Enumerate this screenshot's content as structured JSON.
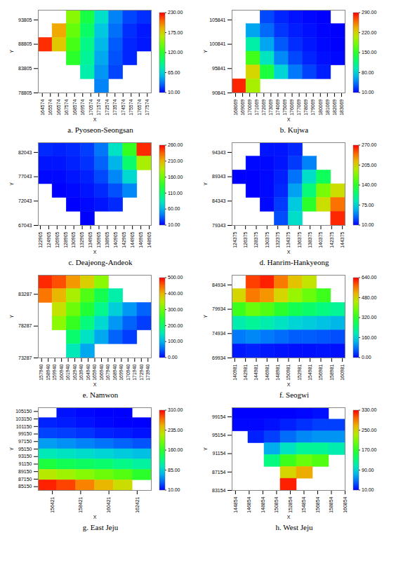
{
  "chart_data": [
    {
      "type": "heatmap",
      "title": "a. Pyoseon-Seongsan",
      "xlabel": "X",
      "ylabel": "Y",
      "xlim": [
        164074,
        178074
      ],
      "xticks": [
        164574,
        165574,
        166574,
        167574,
        168574,
        169574,
        170574,
        171574,
        172574,
        173574,
        174574,
        175574,
        176574,
        177574
      ],
      "ylim": [
        78805,
        95805
      ],
      "yticks": [
        78805,
        83805,
        88805,
        93805
      ],
      "cells": [
        [
          null,
          null,
          150,
          110,
          70,
          40,
          25,
          20
        ],
        [
          null,
          190,
          140,
          100,
          60,
          35,
          20,
          15
        ],
        [
          220,
          180,
          130,
          90,
          55,
          30,
          18,
          15
        ],
        [
          null,
          null,
          120,
          85,
          50,
          28,
          18,
          null
        ],
        [
          null,
          null,
          null,
          80,
          45,
          25,
          null,
          null
        ],
        [
          null,
          null,
          null,
          null,
          40,
          null,
          null,
          null
        ]
      ],
      "colorbar": {
        "range": [
          10,
          230
        ],
        "ticks": [
          {
            "value": 10,
            "label": "10.00"
          },
          {
            "value": 65,
            "label": "65.00"
          },
          {
            "value": 120,
            "label": "120.00"
          },
          {
            "value": 175,
            "label": "175.00"
          },
          {
            "value": 230,
            "label": "230.00"
          }
        ]
      }
    },
    {
      "type": "heatmap",
      "title": "b. Kujwa",
      "xlabel": "X",
      "ylabel": "Y",
      "xlim": [
        167569,
        183569
      ],
      "xticks": [
        168069,
        169069,
        170069,
        171069,
        172069,
        173069,
        174069,
        175069,
        176069,
        177069,
        178069,
        179069,
        180069,
        181069,
        182069,
        183069
      ],
      "ylim": [
        90841,
        107841
      ],
      "yticks": [
        90841,
        95841,
        100841,
        105841
      ],
      "cells": [
        [
          null,
          null,
          30,
          20,
          15,
          12,
          10,
          null
        ],
        [
          null,
          60,
          40,
          25,
          18,
          14,
          11,
          10
        ],
        [
          null,
          100,
          60,
          35,
          22,
          16,
          12,
          10
        ],
        [
          null,
          160,
          90,
          50,
          30,
          20,
          14,
          12
        ],
        [
          null,
          220,
          140,
          80,
          45,
          28,
          18,
          null
        ],
        [
          280,
          200,
          null,
          null,
          null,
          null,
          null,
          null
        ]
      ],
      "colorbar": {
        "range": [
          10,
          290
        ],
        "ticks": [
          {
            "value": 10,
            "label": "10.00"
          },
          {
            "value": 80,
            "label": "80.00"
          },
          {
            "value": 150,
            "label": "150.00"
          },
          {
            "value": 220,
            "label": "220.00"
          },
          {
            "value": 290,
            "label": "290.00"
          }
        ]
      }
    },
    {
      "type": "heatmap",
      "title": "c. Deajeong-Andeok",
      "xlabel": "X",
      "ylabel": "Y",
      "xlim": [
        122405,
        149405
      ],
      "xticks": [
        122905,
        124905,
        126905,
        128905,
        130905,
        132905,
        134905,
        136905,
        138905,
        140905,
        142905,
        144905,
        146905,
        148905
      ],
      "ylim": [
        67043,
        84043
      ],
      "yticks": [
        67043,
        72043,
        77043,
        82043
      ],
      "cells": [
        [
          20,
          18,
          20,
          25,
          40,
          80,
          140,
          250
        ],
        [
          15,
          15,
          18,
          22,
          35,
          60,
          110,
          180
        ],
        [
          12,
          12,
          15,
          18,
          28,
          45,
          75,
          null
        ],
        [
          null,
          10,
          12,
          15,
          20,
          30,
          45,
          null
        ],
        [
          null,
          null,
          10,
          12,
          15,
          20,
          null,
          null
        ],
        [
          null,
          null,
          null,
          10,
          null,
          null,
          null,
          null
        ]
      ],
      "colorbar": {
        "range": [
          10,
          260
        ],
        "ticks": [
          {
            "value": 10,
            "label": "10.00"
          },
          {
            "value": 60,
            "label": "60.00"
          },
          {
            "value": 110,
            "label": "110.00"
          },
          {
            "value": 160,
            "label": "160.00"
          },
          {
            "value": 210,
            "label": "210.00"
          },
          {
            "value": 260,
            "label": "260.00"
          }
        ]
      }
    },
    {
      "type": "heatmap",
      "title": "d. Hanrim-Hankyeong",
      "xlabel": "X",
      "ylabel": "Y",
      "xlim": [
        123875,
        144875
      ],
      "xticks": [
        124375,
        126375,
        128375,
        130375,
        132375,
        134375,
        136375,
        138375,
        140375,
        142375,
        144375
      ],
      "ylim": [
        79343,
        96343
      ],
      "yticks": [
        79343,
        84343,
        89343,
        94343
      ],
      "cells": [
        [
          null,
          null,
          15,
          15,
          20,
          null,
          null,
          null
        ],
        [
          null,
          12,
          12,
          15,
          25,
          45,
          null,
          null
        ],
        [
          10,
          10,
          12,
          18,
          40,
          80,
          120,
          null
        ],
        [
          null,
          10,
          12,
          20,
          55,
          110,
          170,
          200
        ],
        [
          null,
          null,
          12,
          25,
          70,
          140,
          200,
          240
        ],
        [
          null,
          null,
          null,
          30,
          80,
          null,
          null,
          260
        ]
      ],
      "colorbar": {
        "range": [
          10,
          270
        ],
        "ticks": [
          {
            "value": 10,
            "label": "10.00"
          },
          {
            "value": 75,
            "label": "75.00"
          },
          {
            "value": 140,
            "label": "140.00"
          },
          {
            "value": 205,
            "label": "205.00"
          },
          {
            "value": 270,
            "label": "270.00"
          }
        ]
      }
    },
    {
      "type": "heatmap",
      "title": "e. Namwon",
      "xlabel": "X",
      "ylabel": "Y",
      "xlim": [
        157440,
        174440
      ],
      "xticks": [
        157940,
        158940,
        159940,
        160940,
        161940,
        162940,
        163940,
        164940,
        165940,
        166940,
        167940,
        168940,
        169940,
        170940,
        171940,
        172940,
        173940
      ],
      "ylim": [
        73287,
        86287
      ],
      "yticks": [
        73287,
        78287,
        83287
      ],
      "cells": [
        [
          480,
          460,
          420,
          380,
          320,
          null,
          null,
          null
        ],
        [
          440,
          400,
          340,
          280,
          220,
          160,
          null,
          null
        ],
        [
          null,
          360,
          300,
          240,
          180,
          120,
          80,
          50
        ],
        [
          null,
          320,
          260,
          190,
          130,
          80,
          50,
          30
        ],
        [
          null,
          null,
          200,
          140,
          90,
          50,
          30,
          null
        ],
        [
          null,
          null,
          150,
          90,
          null,
          null,
          null,
          null
        ]
      ],
      "colorbar": {
        "range": [
          0,
          500
        ],
        "ticks": [
          {
            "value": 0,
            "label": "0.00"
          },
          {
            "value": 100,
            "label": "100.00"
          },
          {
            "value": 200,
            "label": "200.00"
          },
          {
            "value": 300,
            "label": "300.00"
          },
          {
            "value": 400,
            "label": "400.00"
          },
          {
            "value": 500,
            "label": "500.00"
          }
        ]
      }
    },
    {
      "type": "heatmap",
      "title": "f. Seogwi",
      "xlabel": "X",
      "ylabel": "Y",
      "xlim": [
        140481,
        161481
      ],
      "xticks": [
        140981,
        142981,
        144981,
        146981,
        148981,
        150981,
        152981,
        154981,
        156981,
        158981,
        160981
      ],
      "ylim": [
        69934,
        86934
      ],
      "yticks": [
        69934,
        74934,
        79934,
        84934
      ],
      "cells": [
        [
          null,
          600,
          620,
          560,
          500,
          460,
          null,
          null
        ],
        [
          480,
          560,
          540,
          480,
          420,
          380,
          340,
          null
        ],
        [
          340,
          380,
          360,
          320,
          280,
          260,
          240,
          220
        ],
        [
          200,
          220,
          200,
          180,
          160,
          150,
          140,
          130
        ],
        [
          80,
          90,
          80,
          70,
          60,
          60,
          55,
          50
        ],
        [
          15,
          20,
          15,
          12,
          10,
          10,
          12,
          10
        ]
      ],
      "colorbar": {
        "range": [
          0,
          640
        ],
        "ticks": [
          {
            "value": 0,
            "label": "0.00"
          },
          {
            "value": 160,
            "label": "160.00"
          },
          {
            "value": 320,
            "label": "320.00"
          },
          {
            "value": 480,
            "label": "480.00"
          },
          {
            "value": 640,
            "label": "640.00"
          }
        ]
      }
    },
    {
      "type": "heatmap",
      "title": "g. East Jeju",
      "xlabel": "X",
      "ylabel": "Y",
      "xlim": [
        155421,
        163421
      ],
      "xticks": [
        156421,
        158421,
        160421,
        162421
      ],
      "ylim": [
        84150,
        106150
      ],
      "yticks": [
        85150,
        87150,
        89150,
        91150,
        93150,
        95150,
        97150,
        99150,
        101150,
        103150,
        105150
      ],
      "cells": [
        [
          null,
          15,
          12,
          10,
          10,
          null
        ],
        [
          20,
          18,
          15,
          12,
          10,
          10
        ],
        [
          30,
          28,
          25,
          20,
          18,
          15
        ],
        [
          60,
          55,
          50,
          45,
          40,
          35
        ],
        [
          100,
          95,
          90,
          85,
          80,
          75
        ],
        [
          150,
          140,
          135,
          130,
          120,
          110
        ],
        [
          220,
          210,
          200,
          190,
          180,
          160
        ],
        [
          300,
          290,
          270,
          250,
          230,
          null
        ]
      ],
      "colorbar": {
        "range": [
          10,
          310
        ],
        "ticks": [
          {
            "value": 10,
            "label": "10.00"
          },
          {
            "value": 85,
            "label": "85.00"
          },
          {
            "value": 160,
            "label": "160.00"
          },
          {
            "value": 235,
            "label": "235.00"
          },
          {
            "value": 310,
            "label": "310.00"
          }
        ]
      }
    },
    {
      "type": "heatmap",
      "title": "h. West Jeju",
      "xlabel": "X",
      "ylabel": "Y",
      "xlim": [
        144354,
        160854
      ],
      "xticks": [
        144854,
        146854,
        148854,
        150854,
        152854,
        154854,
        156854,
        158854,
        160854
      ],
      "ylim": [
        83154,
        101154
      ],
      "yticks": [
        83154,
        87154,
        91154,
        95154,
        99154
      ],
      "cells": [
        [
          10,
          10,
          10,
          10,
          12,
          15,
          null
        ],
        [
          12,
          12,
          15,
          20,
          25,
          30,
          30
        ],
        [
          null,
          20,
          30,
          45,
          55,
          60,
          60
        ],
        [
          null,
          null,
          70,
          100,
          120,
          120,
          110
        ],
        [
          null,
          null,
          130,
          180,
          200,
          190,
          null
        ],
        [
          null,
          null,
          null,
          250,
          270,
          null,
          null
        ],
        [
          null,
          null,
          null,
          320,
          null,
          null,
          null
        ]
      ],
      "colorbar": {
        "range": [
          10,
          330
        ],
        "ticks": [
          {
            "value": 10,
            "label": "10.00"
          },
          {
            "value": 90,
            "label": "90.00"
          },
          {
            "value": 170,
            "label": "170.00"
          },
          {
            "value": 250,
            "label": "250.00"
          },
          {
            "value": 330,
            "label": "330.00"
          }
        ]
      }
    }
  ]
}
